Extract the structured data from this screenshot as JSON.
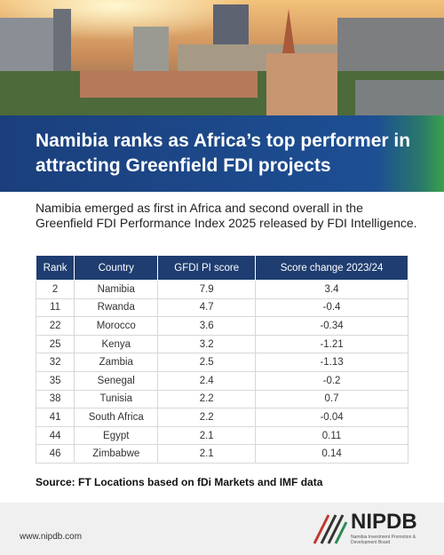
{
  "header": {
    "title": "Namibia ranks as Africa’s top performer in attracting Greenfield FDI projects"
  },
  "intro": "Namibia emerged as first in Africa and second overall in the Greenfield FDI Performance Index 2025 released by FDI Intelligence.",
  "table": {
    "columns": [
      "Rank",
      "Country",
      "GFDI PI score",
      "Score change 2023/24"
    ],
    "rows": [
      [
        2,
        "Namibia",
        7.9,
        3.4
      ],
      [
        11,
        "Rwanda",
        4.7,
        -0.4
      ],
      [
        22,
        "Morocco",
        3.6,
        -0.34
      ],
      [
        25,
        "Kenya",
        3.2,
        -1.21
      ],
      [
        32,
        "Zambia",
        2.5,
        -1.13
      ],
      [
        35,
        "Senegal",
        2.4,
        -0.2
      ],
      [
        38,
        "Tunisia",
        2.2,
        0.7
      ],
      [
        41,
        "South Africa",
        2.2,
        -0.04
      ],
      [
        44,
        "Egypt",
        2.1,
        0.11
      ],
      [
        46,
        "Zimbabwe",
        2.1,
        0.14
      ]
    ]
  },
  "source": "Source: FT Locations based on fDi Markets and IMF data",
  "footer": {
    "url": "www.nipdb.com",
    "logo": "NIPDB",
    "org": "Namibia Investment Promotion & Development Board"
  }
}
